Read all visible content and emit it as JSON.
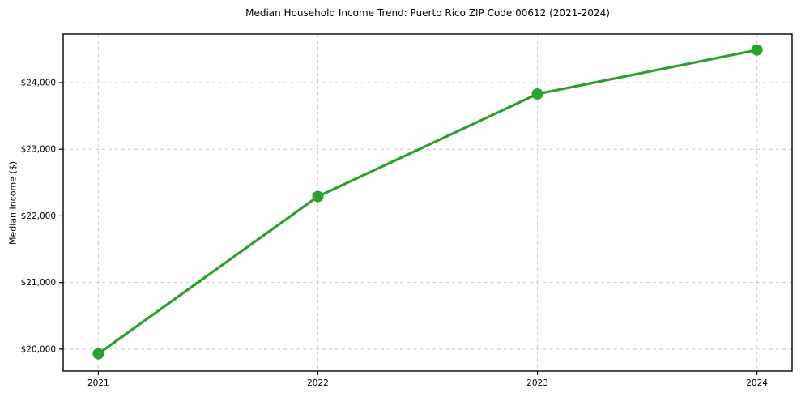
{
  "chart_data": {
    "type": "line",
    "title": "Median Household Income Trend: Puerto Rico ZIP Code 00612 (2021-2024)",
    "xlabel": "",
    "ylabel": "Median Income ($)",
    "x": [
      2021,
      2022,
      2023,
      2024
    ],
    "series": [
      {
        "name": "Median Household Income",
        "values": [
          19930,
          22290,
          23830,
          24490
        ]
      }
    ],
    "x_tick_labels": [
      "2021",
      "2022",
      "2023",
      "2024"
    ],
    "y_ticks": [
      20000,
      21000,
      22000,
      23000,
      24000
    ],
    "y_tick_labels": [
      "$20,000",
      "$21,000",
      "$22,000",
      "$23,000",
      "$24,000"
    ],
    "xlim": [
      2020.84,
      2024.16
    ],
    "ylim": [
      19670,
      24730
    ],
    "grid": "dashed-both",
    "legend": "none",
    "colors": {
      "line": "#2ca02c",
      "marker": "#2ca02c",
      "grid": "#cccccc",
      "spine": "#000000",
      "text": "#000000",
      "background": "#ffffff"
    },
    "marker": "circle",
    "marker_radius": 7,
    "line_width": 3.2
  }
}
